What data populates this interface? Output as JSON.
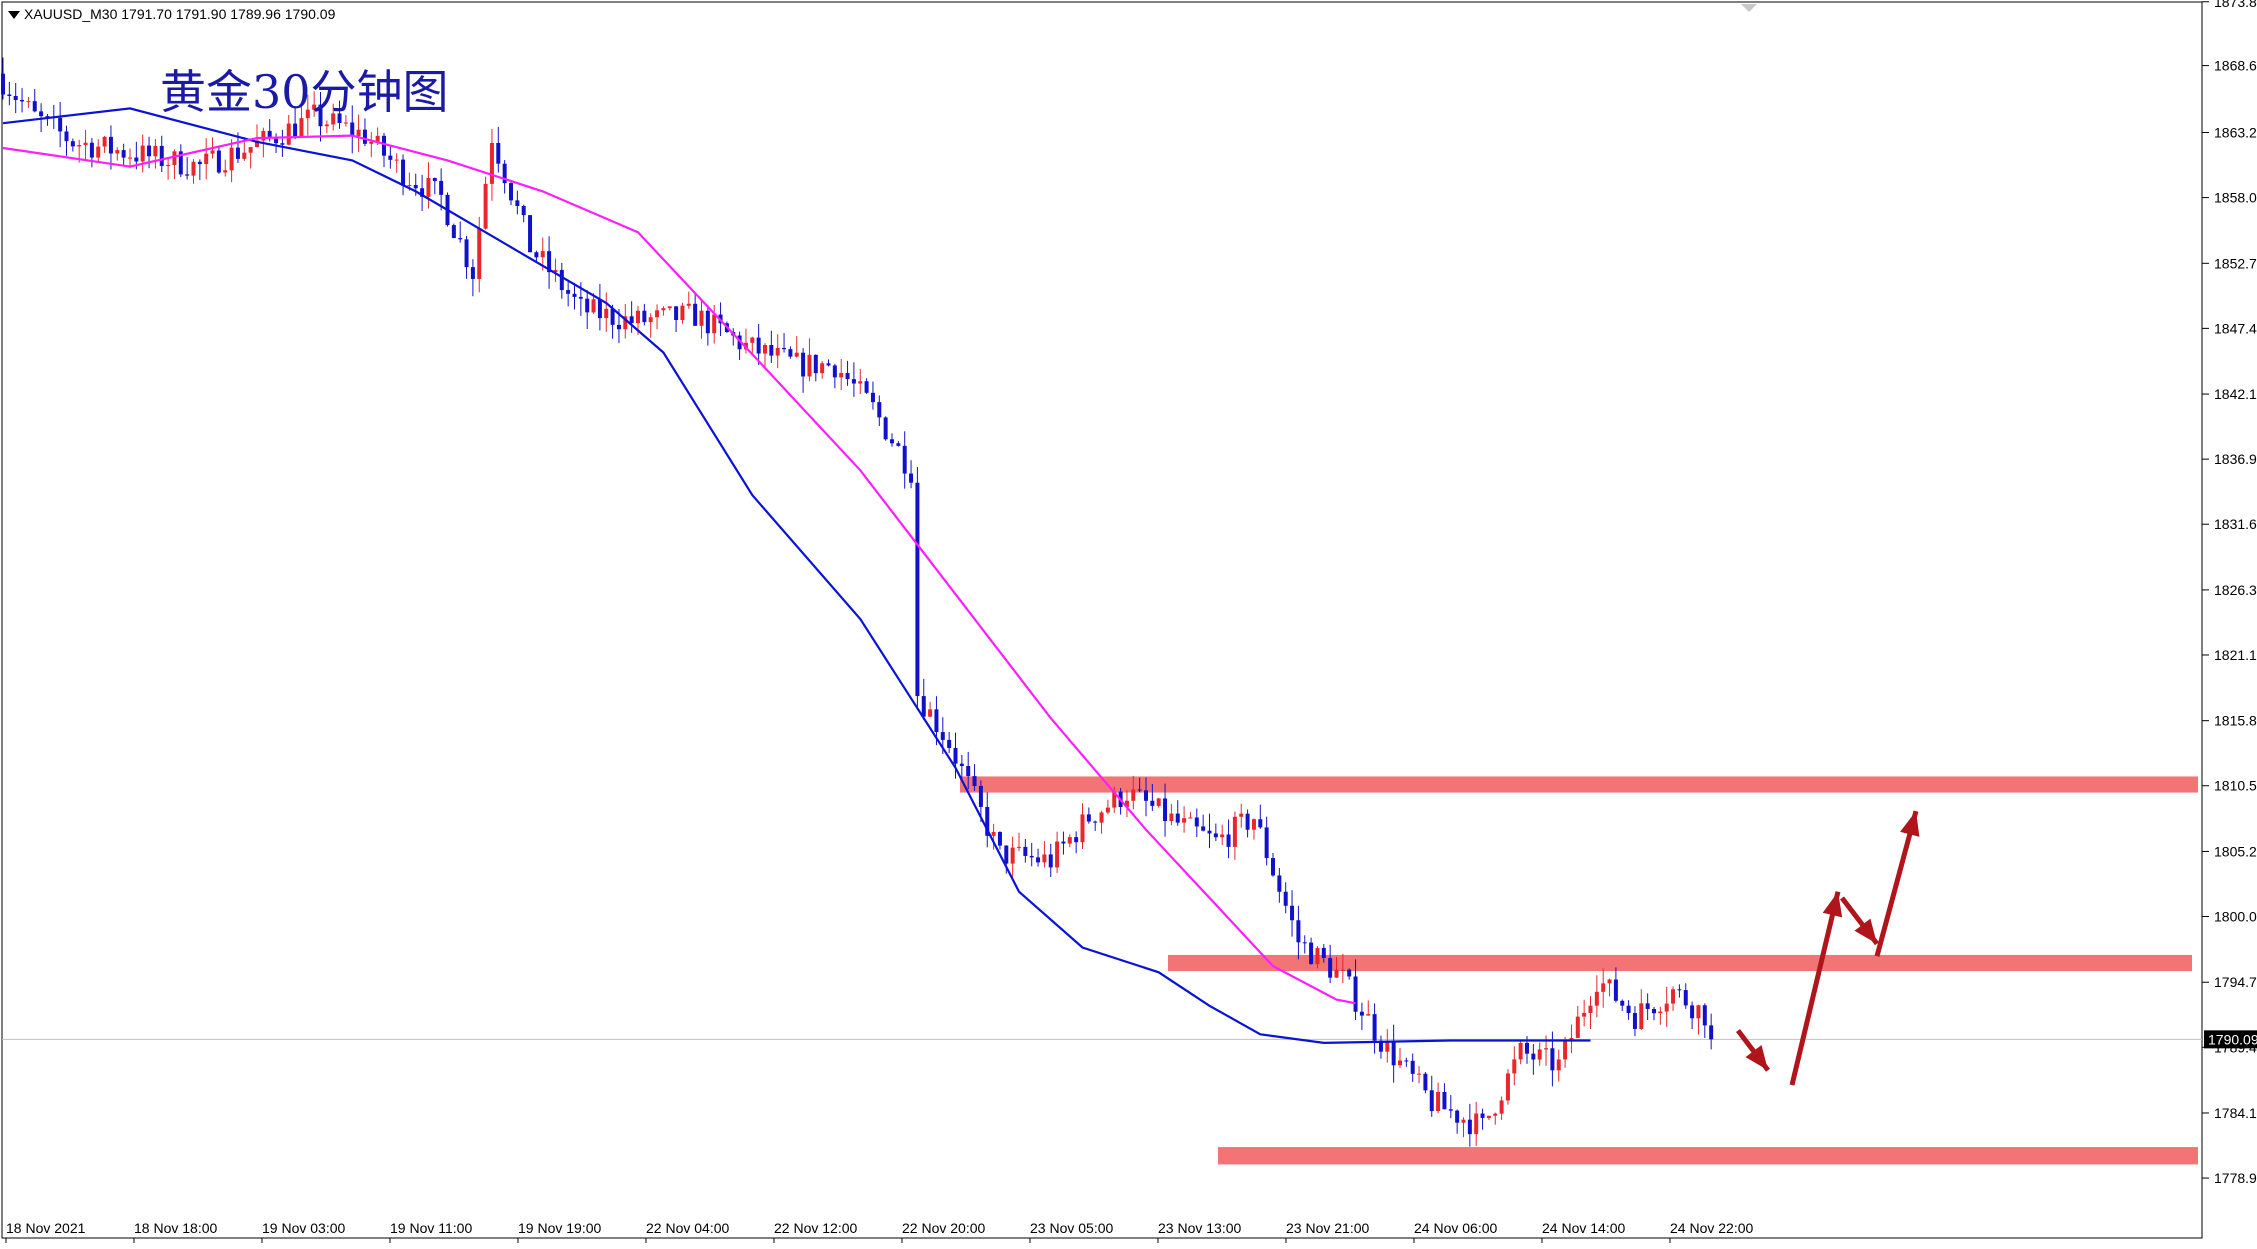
{
  "symbol_info": "XAUUSD_M30  1791.70 1791.90 1789.96 1790.09",
  "colors": {
    "bull_candle": "#e8262b",
    "bear_candle": "#1111cc",
    "ma_fast": "#0a12d8",
    "ma_slow": "#ff1eff",
    "zone": "#f27474",
    "arrow": "#b0151b",
    "current_price_box": "#000000"
  },
  "chart_data": {
    "type": "candlestick",
    "title": "黄金30分钟图",
    "symbol": "XAUUSD_M30",
    "header_ohlc": {
      "open": 1791.7,
      "high": 1791.9,
      "low": 1789.96,
      "close": 1790.09
    },
    "current_price": "1790.09",
    "ylim": [
      1776.0,
      1873.78
    ],
    "y_ticks": [
      "1873.80",
      "1868.65",
      "1863.25",
      "1858.00",
      "1852.70",
      "1847.45",
      "1842.15",
      "1836.90",
      "1831.65",
      "1826.35",
      "1821.10",
      "1815.80",
      "1810.55",
      "1805.25",
      "1800.00",
      "1794.70",
      "1789.45",
      "1784.15",
      "1778.90"
    ],
    "x_ticks": [
      "18 Nov 2021",
      "18 Nov 18:00",
      "19 Nov 03:00",
      "19 Nov 11:00",
      "19 Nov 19:00",
      "22 Nov 04:00",
      "22 Nov 12:00",
      "22 Nov 20:00",
      "23 Nov 05:00",
      "23 Nov 13:00",
      "23 Nov 21:00",
      "24 Nov 06:00",
      "24 Nov 14:00",
      "24 Nov 22:00"
    ],
    "candle_count": 270,
    "price_path": [
      [
        0,
        1868
      ],
      [
        6,
        1864.5
      ],
      [
        12,
        1862.5
      ],
      [
        22,
        1861.5
      ],
      [
        32,
        1860.5
      ],
      [
        42,
        1862.5
      ],
      [
        50,
        1864.5
      ],
      [
        58,
        1863
      ],
      [
        64,
        1860
      ],
      [
        70,
        1858
      ],
      [
        75,
        1852
      ],
      [
        78,
        1863
      ],
      [
        84,
        1854
      ],
      [
        92,
        1849
      ],
      [
        100,
        1848
      ],
      [
        110,
        1848.5
      ],
      [
        118,
        1846
      ],
      [
        126,
        1844.5
      ],
      [
        132,
        1844.5
      ],
      [
        138,
        1841
      ],
      [
        144,
        1836
      ],
      [
        145,
        1818
      ],
      [
        150,
        1814
      ],
      [
        158,
        1805
      ],
      [
        166,
        1804.5
      ],
      [
        172,
        1808
      ],
      [
        178,
        1810
      ],
      [
        186,
        1807.5
      ],
      [
        192,
        1806
      ],
      [
        198,
        1808
      ],
      [
        205,
        1798
      ],
      [
        212,
        1795
      ],
      [
        218,
        1790
      ],
      [
        226,
        1785
      ],
      [
        234,
        1783
      ],
      [
        240,
        1789
      ],
      [
        246,
        1788
      ],
      [
        252,
        1795
      ],
      [
        258,
        1792
      ],
      [
        264,
        1794
      ],
      [
        272,
        1791
      ],
      [
        280,
        1786
      ],
      [
        288,
        1784
      ],
      [
        294,
        1791
      ],
      [
        300,
        1786
      ],
      [
        306,
        1784.5
      ],
      [
        312,
        1789
      ],
      [
        318,
        1790.5
      ],
      [
        320,
        1790.1
      ]
    ],
    "series": [
      {
        "name": "MA fast",
        "type": "line",
        "points": [
          [
            0,
            1864
          ],
          [
            20,
            1865.2
          ],
          [
            40,
            1862.5
          ],
          [
            55,
            1861
          ],
          [
            65,
            1858.5
          ],
          [
            80,
            1854
          ],
          [
            95,
            1849.5
          ],
          [
            104,
            1845.5
          ],
          [
            118,
            1834
          ],
          [
            135,
            1824
          ],
          [
            150,
            1812
          ],
          [
            160,
            1802
          ],
          [
            170,
            1797.5
          ],
          [
            182,
            1795.5
          ],
          [
            190,
            1792.8
          ],
          [
            198,
            1790.5
          ],
          [
            208,
            1789.8
          ],
          [
            228,
            1790
          ],
          [
            250,
            1790
          ]
        ]
      },
      {
        "name": "MA slow",
        "type": "line",
        "points": [
          [
            0,
            1862
          ],
          [
            20,
            1860.5
          ],
          [
            40,
            1862.8
          ],
          [
            55,
            1863
          ],
          [
            70,
            1861
          ],
          [
            85,
            1858.5
          ],
          [
            100,
            1855.2
          ],
          [
            115,
            1847
          ],
          [
            135,
            1836
          ],
          [
            150,
            1826
          ],
          [
            165,
            1816
          ],
          [
            180,
            1807
          ],
          [
            190,
            1801.5
          ],
          [
            200,
            1796
          ],
          [
            210,
            1793.3
          ],
          [
            213,
            1793
          ]
        ]
      }
    ],
    "zones": [
      {
        "y_low": 1810.0,
        "y_high": 1811.3
      },
      {
        "y_low": 1795.6,
        "y_high": 1796.9
      },
      {
        "y_low": 1780.0,
        "y_high": 1781.4
      }
    ],
    "projection_arrows": [
      [
        [
          1790.8,
          1790.8
        ],
        [
          1787.6,
          1787.6
        ]
      ],
      [
        [
          1786.4,
          1786.4
        ],
        [
          1802.0,
          1802.0
        ]
      ],
      [
        [
          1801.5,
          1801.5
        ],
        [
          1797.8,
          1797.8
        ]
      ],
      [
        [
          1796.8,
          1796.8
        ],
        [
          1808.5,
          1808.5
        ]
      ]
    ],
    "grid": false,
    "legend": "none"
  }
}
